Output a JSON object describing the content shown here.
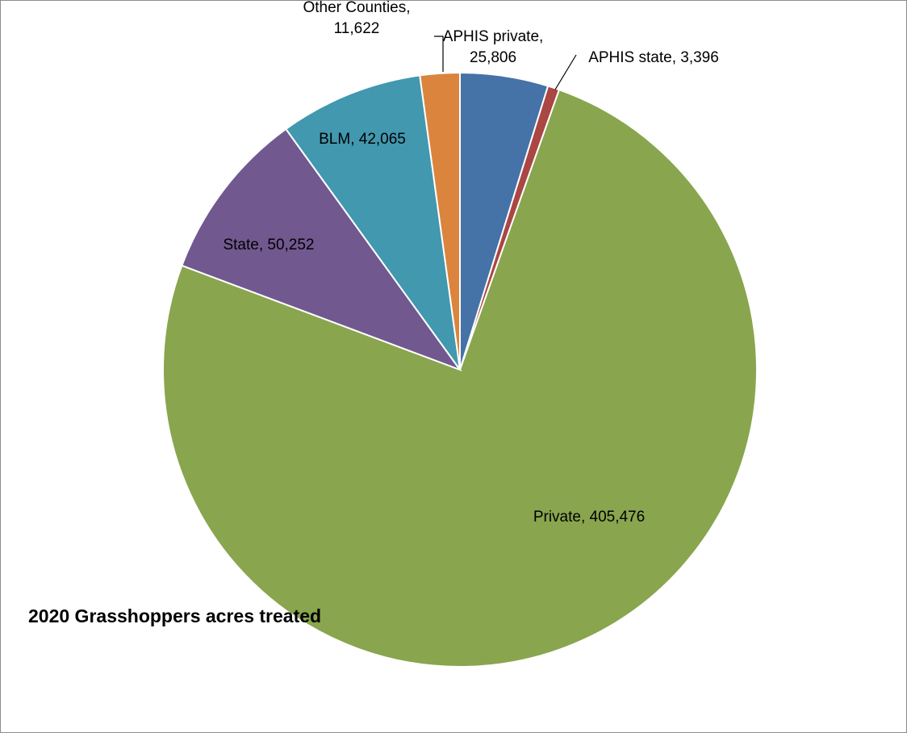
{
  "chart_data": {
    "type": "pie",
    "title": "2020 Grasshoppers acres treated",
    "slices": [
      {
        "name": "APHIS private",
        "value": 25806,
        "label_lines": [
          "APHIS private,",
          "25,806"
        ],
        "color": "#4572a7"
      },
      {
        "name": "APHIS state",
        "value": 3396,
        "label_lines": [
          "APHIS state, 3,396"
        ],
        "color": "#aa4643"
      },
      {
        "name": "Private",
        "value": 405476,
        "label_lines": [
          "Private, 405,476"
        ],
        "color": "#89a54e"
      },
      {
        "name": "State",
        "value": 50252,
        "label_lines": [
          "State, 50,252"
        ],
        "color": "#71588f"
      },
      {
        "name": "BLM",
        "value": 42065,
        "label_lines": [
          "BLM, 42,065"
        ],
        "color": "#4198af"
      },
      {
        "name": "Other Counties",
        "value": 11622,
        "label_lines": [
          "Other Counties,",
          "11,622"
        ],
        "color": "#db843d"
      }
    ],
    "legend": "none"
  }
}
